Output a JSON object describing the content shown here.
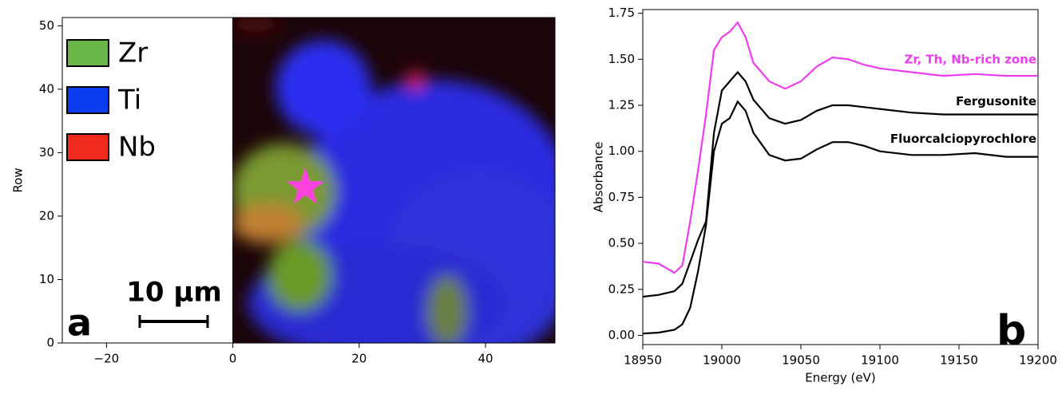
{
  "chart_data": [
    {
      "type": "image",
      "ylabel": "Row",
      "xlim": [
        -27,
        51
      ],
      "ylim": [
        0,
        51.3
      ],
      "xticks": [
        {
          "value": -20,
          "label": "−20"
        },
        0,
        20,
        40
      ],
      "yticks": [
        0,
        10,
        20,
        30,
        40,
        50
      ],
      "channels": [
        {
          "name": "Zr",
          "color": "#6ab548"
        },
        {
          "name": "Ti",
          "color": "#0a3cf0"
        },
        {
          "name": "Nb",
          "color": "#f0281e"
        }
      ],
      "marker": {
        "x": 11.5,
        "y": 24.5,
        "color": "#ff44dd"
      },
      "scale_bar_label": "10 µm",
      "panel_label": "a"
    },
    {
      "type": "line",
      "xlabel": "Energy (eV)",
      "ylabel": "Absorbance",
      "xlim": [
        18950,
        19200
      ],
      "ylim": [
        -0.05,
        1.77
      ],
      "xticks": [
        18950,
        19000,
        19050,
        19100,
        19150,
        19200
      ],
      "yticks": [
        {
          "value": 0,
          "label": "0.00"
        },
        {
          "value": 0.25,
          "label": "0.25"
        },
        {
          "value": 0.5,
          "label": "0.50"
        },
        {
          "value": 0.75,
          "label": "0.75"
        },
        {
          "value": 1,
          "label": "1.00"
        },
        {
          "value": 1.25,
          "label": "1.25"
        },
        {
          "value": 1.5,
          "label": "1.50"
        },
        {
          "value": 1.75,
          "label": "1.75"
        }
      ],
      "x": [
        18950,
        18960,
        18970,
        18975,
        18980,
        18985,
        18990,
        18995,
        19000,
        19005,
        19010,
        19015,
        19020,
        19030,
        19040,
        19050,
        19060,
        19070,
        19080,
        19090,
        19100,
        19120,
        19140,
        19160,
        19180,
        19200
      ],
      "series": [
        {
          "name": "Zr, Th, Nb-rich zone",
          "color": "#f03cf0",
          "values": [
            0.4,
            0.39,
            0.34,
            0.38,
            0.62,
            0.9,
            1.2,
            1.55,
            1.62,
            1.65,
            1.7,
            1.62,
            1.48,
            1.38,
            1.34,
            1.38,
            1.46,
            1.51,
            1.5,
            1.47,
            1.45,
            1.43,
            1.41,
            1.42,
            1.41,
            1.41
          ]
        },
        {
          "name": "Fergusonite",
          "color": "#000000",
          "values": [
            0.21,
            0.22,
            0.24,
            0.28,
            0.4,
            0.52,
            0.62,
            1.1,
            1.33,
            1.38,
            1.43,
            1.38,
            1.28,
            1.18,
            1.15,
            1.17,
            1.22,
            1.25,
            1.25,
            1.24,
            1.23,
            1.21,
            1.2,
            1.2,
            1.2,
            1.2
          ]
        },
        {
          "name": "Fluorcalciopyrochlore",
          "color": "#000000",
          "values": [
            0.01,
            0.015,
            0.03,
            0.06,
            0.15,
            0.35,
            0.6,
            1.0,
            1.15,
            1.18,
            1.27,
            1.22,
            1.1,
            0.98,
            0.95,
            0.96,
            1.01,
            1.05,
            1.05,
            1.03,
            1.0,
            0.98,
            0.98,
            0.99,
            0.97,
            0.97
          ]
        }
      ],
      "panel_label": "b"
    }
  ]
}
